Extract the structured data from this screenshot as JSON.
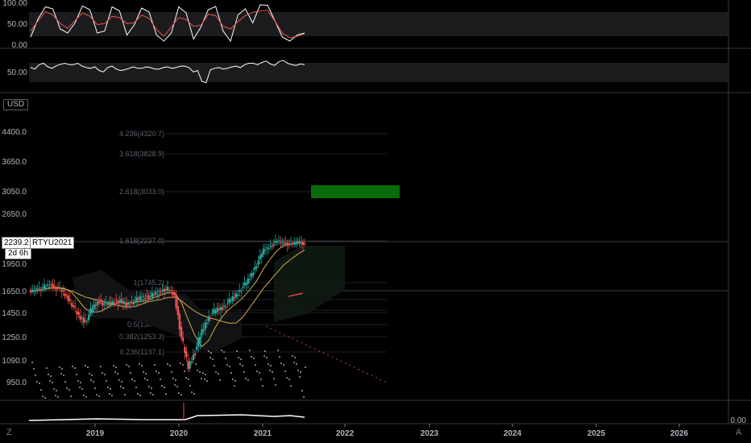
{
  "colors": {
    "up": "#26a69a",
    "down": "#ef5350",
    "bg": "#000000",
    "grid": "#1e222d",
    "fill": "#1c1c1e",
    "border": "#787b86",
    "green_box": "#0a6b0a"
  },
  "panes": {
    "stoch": {
      "ticks": [
        "100.00",
        "50.00",
        "0.00"
      ],
      "values": [
        20,
        65,
        95,
        90,
        40,
        30,
        55,
        97,
        88,
        30,
        35,
        95,
        85,
        25,
        50,
        92,
        82,
        25,
        10,
        30,
        95,
        80,
        15,
        45,
        88,
        96,
        35,
        10,
        75,
        90,
        55,
        100,
        99,
        60,
        20,
        10,
        25,
        30
      ]
    },
    "rsi": {
      "ticks": [
        "50.00"
      ],
      "values": [
        58,
        66,
        60,
        63,
        70,
        66,
        62,
        56,
        50,
        58,
        54,
        52,
        60,
        56,
        58,
        54,
        60,
        58,
        62,
        46,
        20,
        52,
        58,
        56,
        62,
        66,
        70,
        72,
        68,
        74,
        70,
        64,
        66
      ]
    },
    "bottom": {
      "ticks": [
        "0.00"
      ]
    }
  },
  "price_axis": {
    "currency": "USD",
    "ticks": [
      "4400.0",
      "3650.0",
      "3050.0",
      "2650.0",
      "1950.0",
      "1650.0",
      "1450.0",
      "1250.0",
      "1090.0",
      "950.0"
    ]
  },
  "time_axis": {
    "ticks": [
      "2019",
      "2020",
      "2021",
      "2022",
      "2023",
      "2024",
      "2025",
      "2026"
    ]
  },
  "symbol_tag": {
    "price": "2239.2",
    "symbol": "RTYU2021",
    "countdown": "2d 6h"
  },
  "fib_levels": [
    {
      "label": "4.236(4320.7)"
    },
    {
      "label": "3.618(3828.9)"
    },
    {
      "label": "2.618(3033.0)"
    },
    {
      "label": "1.618(2237.0)"
    },
    {
      "label": "1(1745.2)"
    },
    {
      "label": "0.5(1347.2)"
    },
    {
      "label": "0.382(1253.3)"
    },
    {
      "label": "0.236(1137.1)"
    }
  ],
  "corner": {
    "left": "Z",
    "right": "A"
  },
  "chart_data": {
    "type": "candlestick",
    "x_range": [
      "2018-06",
      "2021-07"
    ],
    "close": [
      1650,
      1680,
      1700,
      1720,
      1690,
      1620,
      1540,
      1420,
      1380,
      1500,
      1560,
      1530,
      1550,
      1570,
      1520,
      1560,
      1590,
      1600,
      1620,
      1660,
      1680,
      1610,
      1250,
      1050,
      1150,
      1300,
      1420,
      1480,
      1500,
      1560,
      1620,
      1700,
      1800,
      1950,
      2150,
      2200,
      2270,
      2250,
      2220,
      2260,
      2239
    ]
  }
}
